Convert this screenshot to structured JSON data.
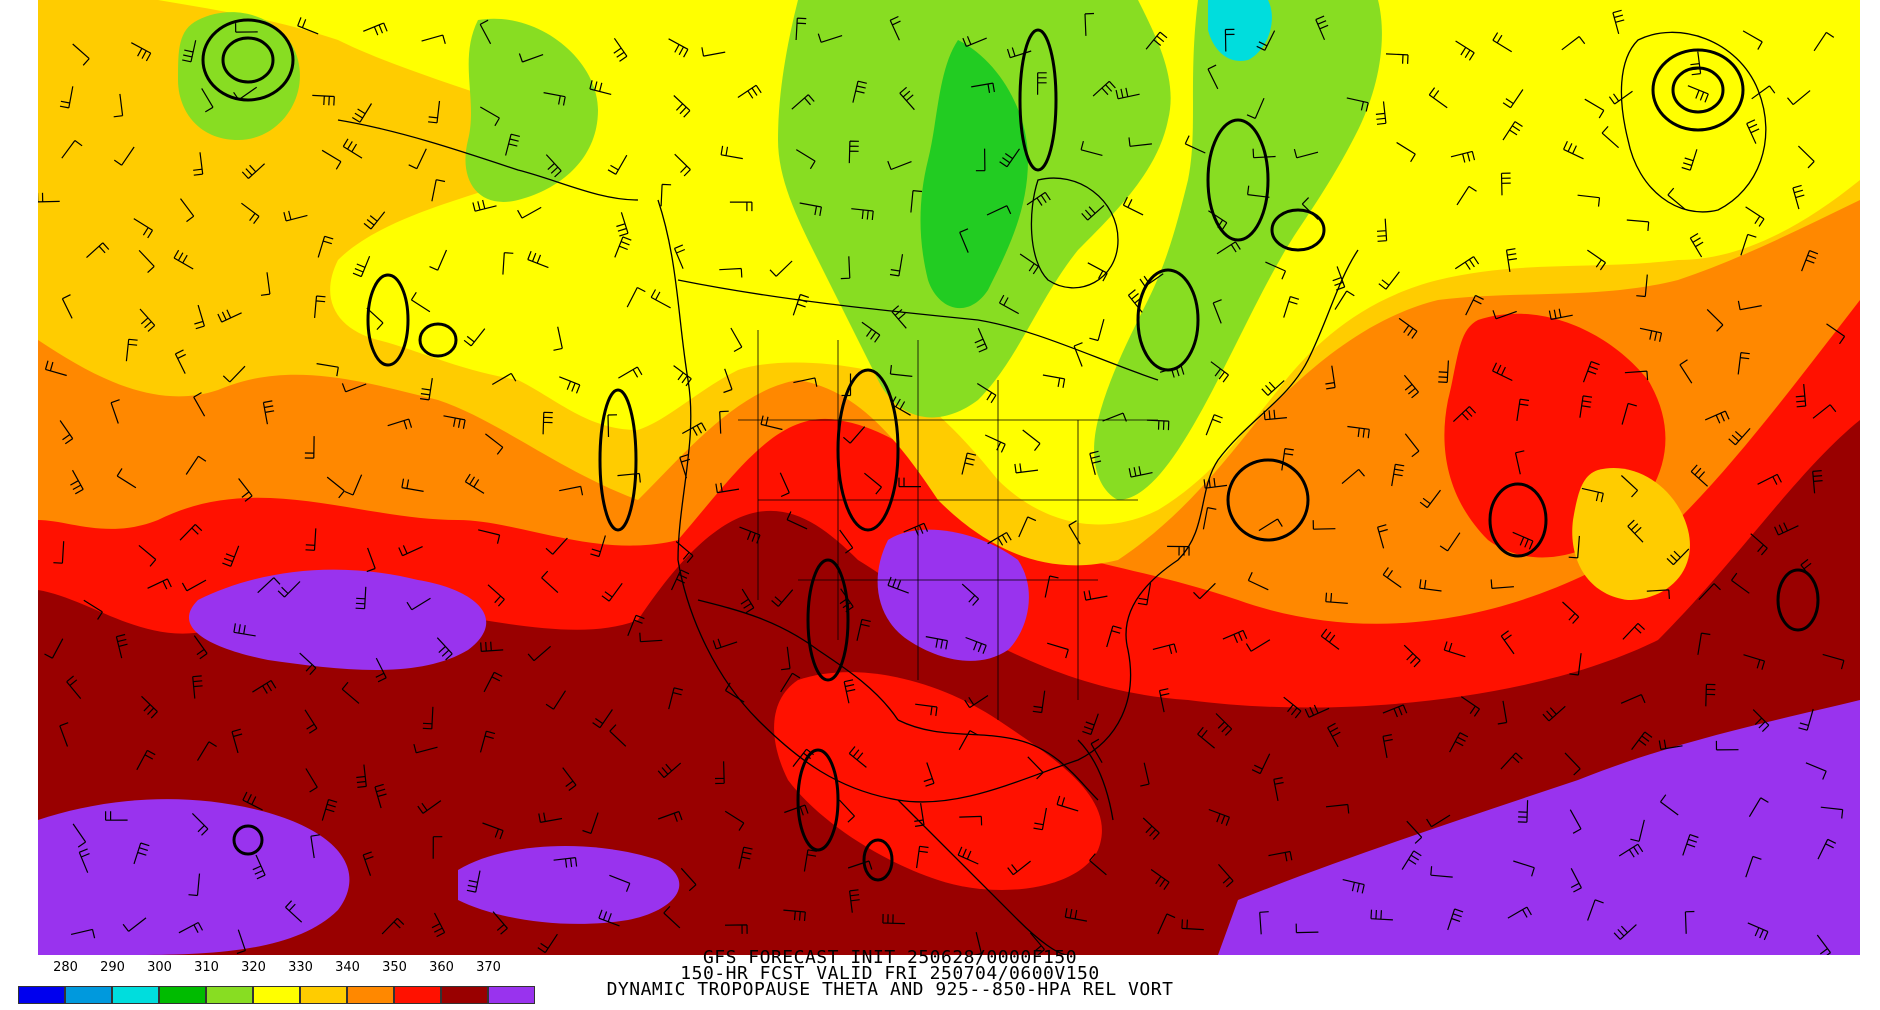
{
  "caption": {
    "line1": "GFS FORECAST INIT 250628/0000F150",
    "line2": "150-HR FCST VALID FRI 250704/0600V150",
    "line3": "DYNAMIC TROPOPAUSE THETA AND 925--850-HPA REL VORT"
  },
  "legend": {
    "labels": [
      "280",
      "290",
      "300",
      "310",
      "320",
      "330",
      "340",
      "350",
      "360",
      "370"
    ],
    "colors": [
      "#0000ee",
      "#0099dd",
      "#00dddd",
      "#00bb00",
      "#88dd22",
      "#ffff00",
      "#ffcc00",
      "#ff8800",
      "#ff1100",
      "#990000",
      "#9933ee"
    ]
  },
  "map": {
    "field_colors": {
      "purple": "#9933ee",
      "maroon": "#990000",
      "red": "#ff1100",
      "orange": "#ff8800",
      "gold": "#ffcc00",
      "yellow": "#ffff00",
      "light_green": "#88dd22",
      "green": "#22cc22",
      "cyan": "#00dddd"
    },
    "overlays": [
      "wind-barbs",
      "vorticity-contours",
      "political-boundaries"
    ]
  }
}
